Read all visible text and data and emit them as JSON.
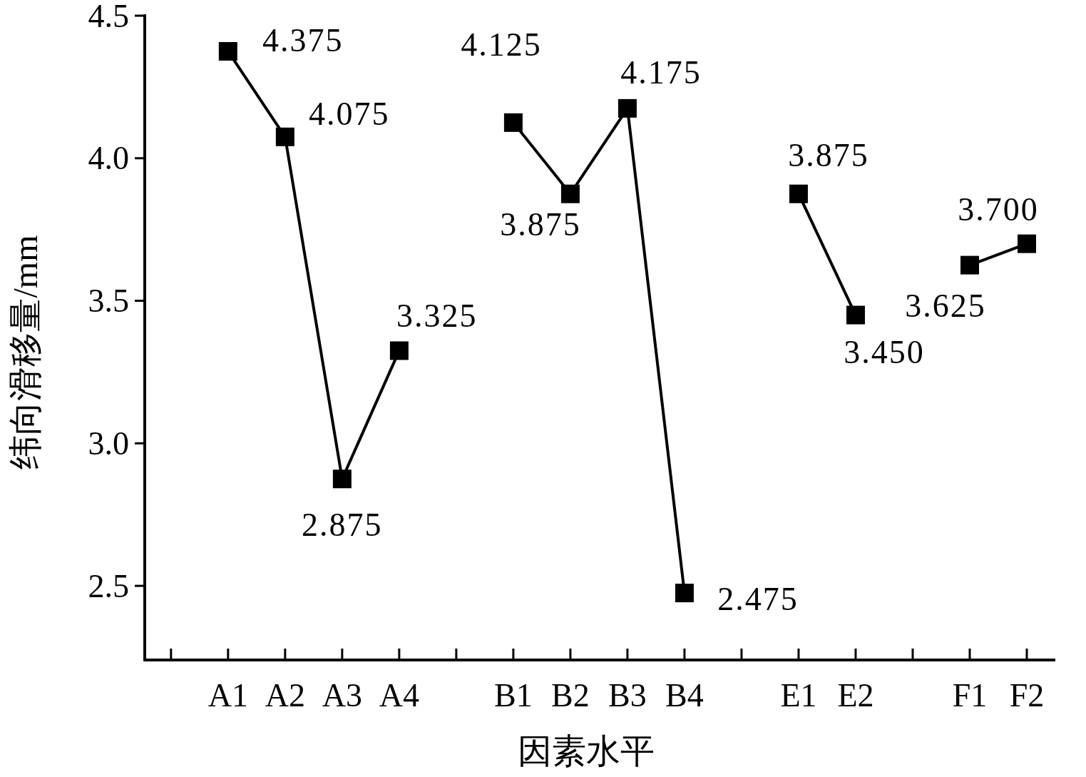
{
  "chart_data": {
    "type": "line",
    "xlabel": "因素水平",
    "ylabel": "纬向滑移量/mm",
    "categories": [
      null,
      "A1",
      "A2",
      "A3",
      "A4",
      null,
      "B1",
      "B2",
      "B3",
      "B4",
      null,
      "E1",
      "E2",
      null,
      "F1",
      "F2"
    ],
    "series": [
      {
        "color": "#000000",
        "values": [
          null,
          4.375,
          4.075,
          2.875,
          3.325,
          null,
          4.125,
          3.875,
          4.175,
          2.475,
          null,
          3.875,
          3.45,
          null,
          3.625,
          3.7
        ],
        "value_labels": [
          null,
          "4.375",
          "4.075",
          "2.875",
          "3.325",
          null,
          "4.125",
          "3.875",
          "4.175",
          "2.475",
          null,
          "3.875",
          "3.450",
          null,
          "3.625",
          "3.700"
        ]
      }
    ],
    "ylim": [
      2.24,
      4.5
    ],
    "yticks": [
      {
        "value": 2.5,
        "label": "2.5"
      },
      {
        "value": 3,
        "label": "3.0"
      },
      {
        "value": 3.5,
        "label": "3.5"
      },
      {
        "value": 4,
        "label": "4.0"
      },
      {
        "value": 4.5,
        "label": "4.5"
      }
    ],
    "marker": "square",
    "line_style": "solid",
    "grid": false
  }
}
